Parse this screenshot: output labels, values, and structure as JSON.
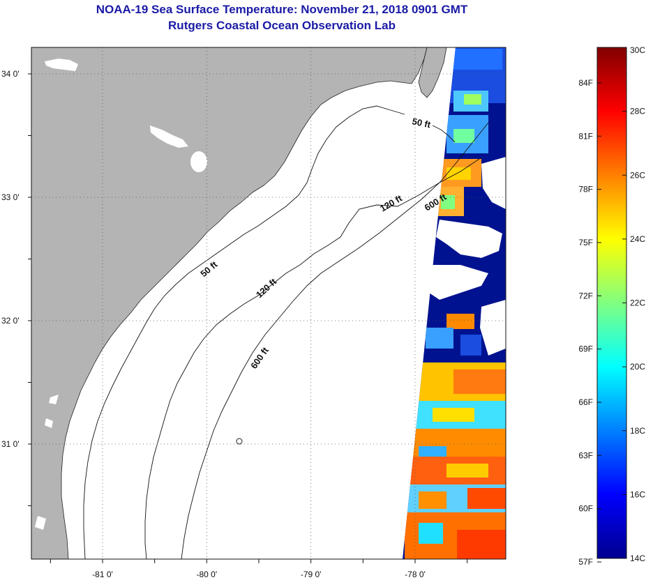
{
  "header": {
    "title": "NOAA-19 Sea Surface Temperature:  November 21, 2018 0901 GMT",
    "subtitle": "Rutgers Coastal Ocean Observation Lab"
  },
  "map": {
    "lat_labels": [
      "34 0'",
      "33 0'",
      "32 0'",
      "31 0'"
    ],
    "lon_labels": [
      "-81 0'",
      "-80 0'",
      "-79 0'",
      "-78 0'"
    ],
    "lat_values": [
      34,
      33,
      32,
      31
    ],
    "lon_values": [
      -81,
      -80,
      -79,
      -78
    ],
    "lon_range": [
      -81.7,
      -77.2
    ],
    "lat_range": [
      30.2,
      34.2
    ],
    "contour_labels": {
      "c50_north": "50 ft",
      "c50_south": "50 ft",
      "c120_north": "120 ft",
      "c120_south": "120 ft",
      "c600_north": "600 ft",
      "c600_south": "600 ft"
    }
  },
  "colorbar": {
    "f_labels": [
      "84F",
      "81F",
      "78F",
      "75F",
      "72F",
      "69F",
      "66F",
      "63F",
      "60F",
      "57F"
    ],
    "c_labels": [
      "30C",
      "28C",
      "26C",
      "24C",
      "22C",
      "20C",
      "18C",
      "16C",
      "14C"
    ],
    "f_values": [
      84,
      81,
      78,
      75,
      72,
      69,
      66,
      63,
      60,
      57
    ],
    "c_values": [
      30,
      28,
      26,
      24,
      22,
      20,
      18,
      16,
      14
    ],
    "c_range": [
      14,
      30
    ],
    "colors": [
      "#00008f",
      "#0000ff",
      "#0080ff",
      "#00ffff",
      "#80ff80",
      "#ffff00",
      "#ff8000",
      "#ff0000",
      "#800000"
    ]
  },
  "colors": {
    "land": "#b4b4b4",
    "ocean": "#ffffff",
    "title": "#1a1aa6",
    "grid": "#555555"
  }
}
